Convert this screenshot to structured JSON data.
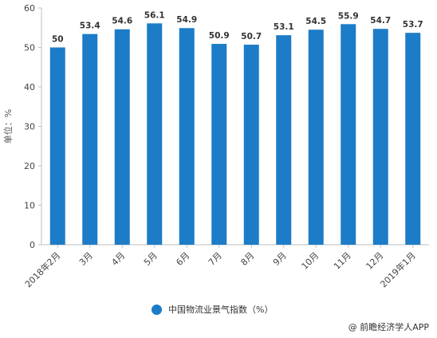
{
  "chart_data": {
    "type": "bar",
    "categories": [
      "2018年2月",
      "3月",
      "4月",
      "5月",
      "6月",
      "7月",
      "8月",
      "9月",
      "10月",
      "11月",
      "12月",
      "2019年1月"
    ],
    "series": [
      {
        "name": "中国物流业景气指数（%）",
        "values": [
          50,
          53.4,
          54.6,
          56.1,
          54.9,
          50.9,
          50.7,
          53.1,
          54.5,
          55.9,
          54.7,
          53.7
        ]
      }
    ],
    "data_labels": [
      "50",
      "53.4",
      "54.6",
      "56.1",
      "54.9",
      "50.9",
      "50.7",
      "53.1",
      "54.5",
      "55.9",
      "54.7",
      "53.7"
    ],
    "title": "",
    "xlabel": "",
    "ylabel": "单位：%",
    "ylim": [
      0,
      60
    ],
    "yticks": [
      0,
      10,
      20,
      30,
      40,
      50,
      60
    ],
    "grid": false,
    "legend_position": "bottom",
    "bar_color": "#1c7cc7"
  },
  "legend": {
    "label": "中国物流业景气指数（%）"
  },
  "source": "@ 前瞻经济学人APP"
}
